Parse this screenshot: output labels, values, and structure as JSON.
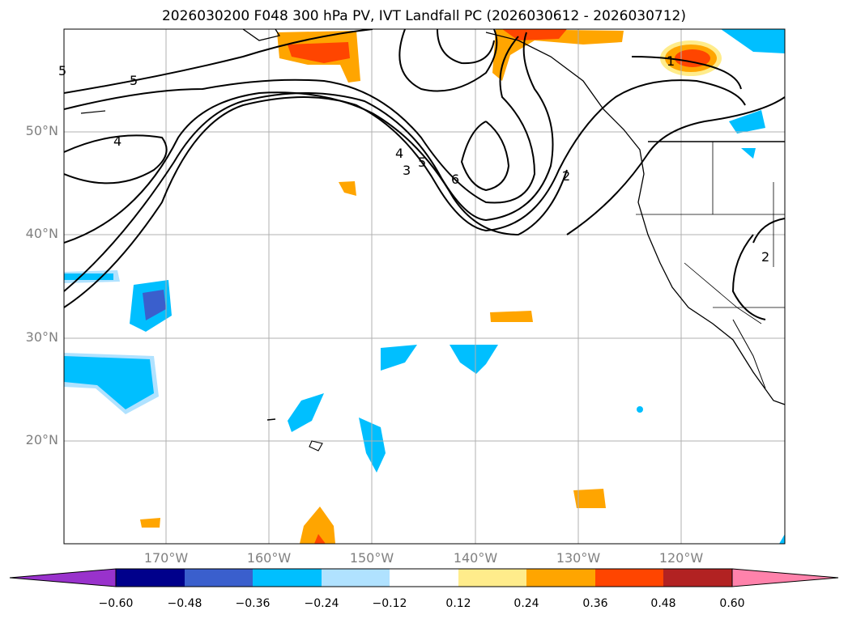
{
  "title": "2026030200 F048 300 hPa PV, IVT Landfall PC (2026030612 - 2026030712)",
  "map": {
    "lat_labels": [
      "50°N",
      "40°N",
      "30°N",
      "20°N"
    ],
    "lon_labels": [
      "170°W",
      "160°W",
      "150°W",
      "140°W",
      "130°W",
      "120°W"
    ],
    "contour_labels": [
      "5",
      "5",
      "4",
      "4",
      "3",
      "5",
      "6",
      "2",
      "1",
      "2"
    ]
  },
  "colorbar": {
    "ticks": [
      "−0.60",
      "−0.48",
      "−0.36",
      "−0.24",
      "−0.12",
      "0.12",
      "0.24",
      "0.36",
      "0.48",
      "0.60"
    ],
    "colors": [
      "#9932cc",
      "#00008b",
      "#3a5fcd",
      "#00bfff",
      "#b0e2ff",
      "#ffffff",
      "#ffec8b",
      "#ffa500",
      "#ff4500",
      "#b22222",
      "#ff82ab"
    ]
  }
}
